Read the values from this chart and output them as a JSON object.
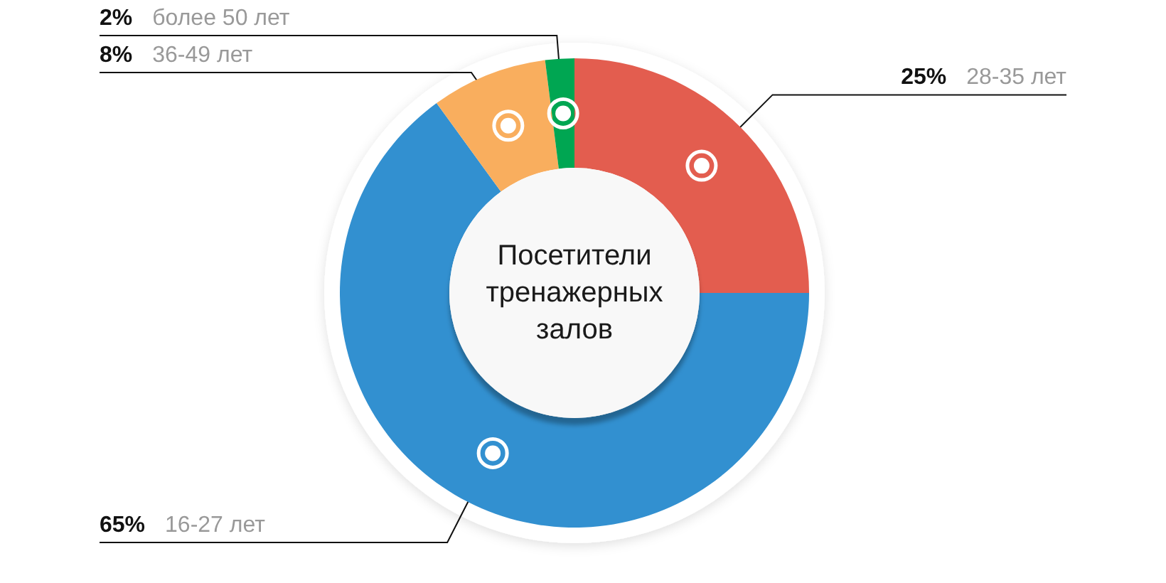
{
  "chart_data": {
    "type": "donut",
    "title": "Посетители тренажерных залов",
    "categories": [
      "28-35 лет",
      "16-27 лет",
      "36-49 лет",
      "более 50 лет"
    ],
    "values": [
      25,
      65,
      8,
      2
    ],
    "colors": [
      "#e35d4f",
      "#3290d0",
      "#f9ae5e",
      "#00a652"
    ],
    "value_labels": [
      "25%",
      "65%",
      "8%",
      "2%"
    ]
  }
}
